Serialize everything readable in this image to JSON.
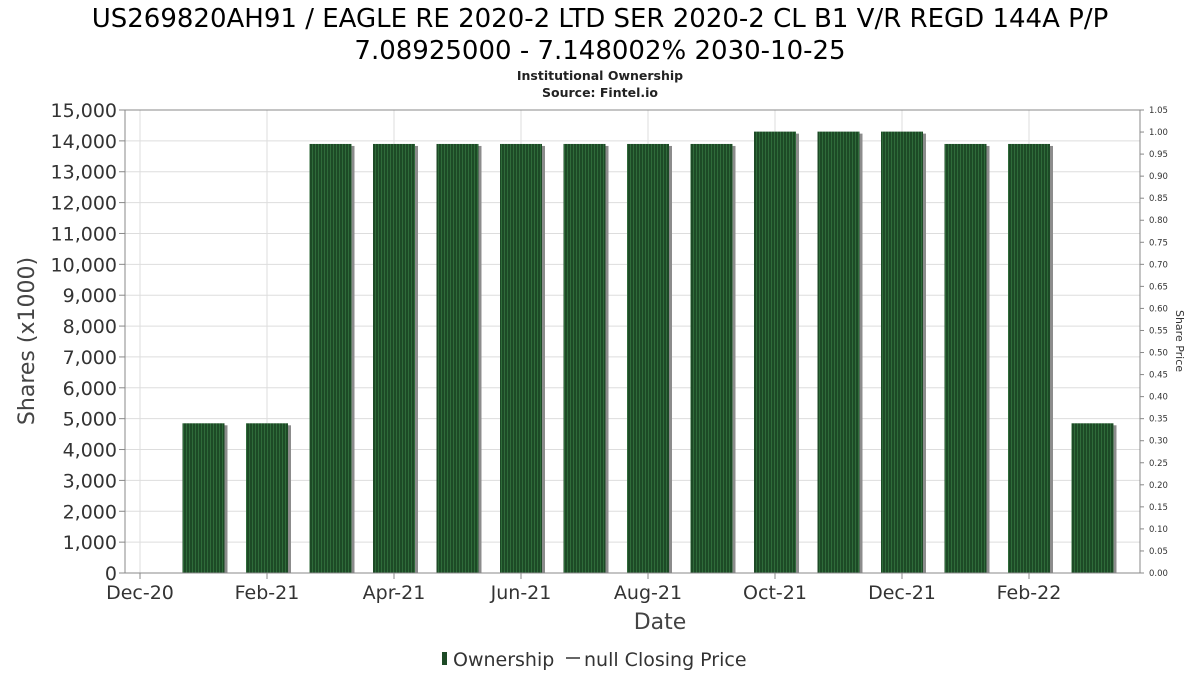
{
  "header": {
    "title_line1": "US269820AH91 / EAGLE RE 2020-2 LTD SER 2020-2 CL B1 V/R REGD 144A P/P",
    "title_line2": "7.08925000 - 7.148002% 2030-10-25",
    "subtitle": "Institutional Ownership",
    "source": "Source: Fintel.io"
  },
  "colors": {
    "bar": "#1d4a26",
    "bar_stripe": "#2f6b3a",
    "bar_shadow": "#8c8c8c",
    "grid": "#dddddd",
    "axis": "#888888"
  },
  "chart_data": {
    "type": "bar",
    "xlabel": "Date",
    "ylabel": "Shares (x1000)",
    "y2label": "Share Price",
    "ylim": [
      0,
      15000
    ],
    "y2lim": [
      0,
      1.05
    ],
    "yticks": [
      "0",
      "1,000",
      "2,000",
      "3,000",
      "4,000",
      "5,000",
      "6,000",
      "7,000",
      "8,000",
      "9,000",
      "10,000",
      "11,000",
      "12,000",
      "13,000",
      "14,000",
      "15,000"
    ],
    "y2ticks": [
      "0.00",
      "0.05",
      "0.10",
      "0.15",
      "0.20",
      "0.25",
      "0.30",
      "0.35",
      "0.40",
      "0.45",
      "0.50",
      "0.55",
      "0.60",
      "0.65",
      "0.70",
      "0.75",
      "0.80",
      "0.85",
      "0.90",
      "0.95",
      "1.00",
      "1.05"
    ],
    "xticks": [
      "Dec-20",
      "Feb-21",
      "Apr-21",
      "Jun-21",
      "Aug-21",
      "Oct-21",
      "Dec-21",
      "Feb-22"
    ],
    "categories": [
      "Jan-21",
      "Feb-21",
      "Mar-21",
      "Apr-21",
      "May-21",
      "Jun-21",
      "Jul-21",
      "Aug-21",
      "Sep-21",
      "Oct-21",
      "Nov-21",
      "Dec-21",
      "Jan-22",
      "Feb-22",
      "Mar-22"
    ],
    "values": [
      4850,
      4850,
      13900,
      13900,
      13900,
      13900,
      13900,
      13900,
      13900,
      14300,
      14300,
      14300,
      13900,
      13900,
      4850
    ],
    "legend": {
      "placement": "bottom-center",
      "entries": [
        "Ownership",
        "null Closing Price"
      ]
    },
    "grid": true
  }
}
